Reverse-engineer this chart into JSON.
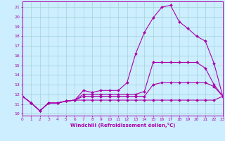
{
  "background_color": "#cceeff",
  "line_color": "#aa00aa",
  "grid_color": "#99cccc",
  "xlabel": "Windchill (Refroidissement éolien,°C)",
  "x_ticks": [
    0,
    1,
    2,
    3,
    4,
    5,
    6,
    7,
    8,
    9,
    10,
    11,
    12,
    13,
    14,
    15,
    16,
    17,
    18,
    19,
    20,
    21,
    22,
    23
  ],
  "y_ticks": [
    10,
    11,
    12,
    13,
    14,
    15,
    16,
    17,
    18,
    19,
    20,
    21
  ],
  "xlim": [
    0,
    23
  ],
  "ylim": [
    9.8,
    21.6
  ],
  "lines": [
    [
      11.8,
      11.1,
      10.3,
      11.1,
      11.1,
      11.3,
      11.4,
      12.4,
      12.2,
      12.4,
      12.4,
      12.4,
      13.2,
      16.2,
      18.4,
      19.9,
      21.0,
      21.2,
      19.5,
      18.8,
      18.0,
      17.5,
      15.2,
      11.8
    ],
    [
      11.8,
      11.1,
      10.3,
      11.1,
      11.1,
      11.3,
      11.4,
      12.0,
      12.0,
      12.0,
      12.0,
      12.0,
      12.0,
      12.0,
      12.3,
      15.3,
      15.3,
      15.3,
      15.3,
      15.3,
      15.3,
      14.7,
      13.0,
      11.8
    ],
    [
      11.8,
      11.1,
      10.3,
      11.1,
      11.1,
      11.3,
      11.4,
      11.8,
      11.8,
      11.8,
      11.8,
      11.8,
      11.8,
      11.8,
      11.8,
      13.0,
      13.2,
      13.2,
      13.2,
      13.2,
      13.2,
      13.2,
      12.8,
      11.8
    ],
    [
      11.8,
      11.1,
      10.3,
      11.1,
      11.1,
      11.3,
      11.4,
      11.4,
      11.4,
      11.4,
      11.4,
      11.4,
      11.4,
      11.4,
      11.4,
      11.4,
      11.4,
      11.4,
      11.4,
      11.4,
      11.4,
      11.4,
      11.4,
      11.8
    ]
  ]
}
